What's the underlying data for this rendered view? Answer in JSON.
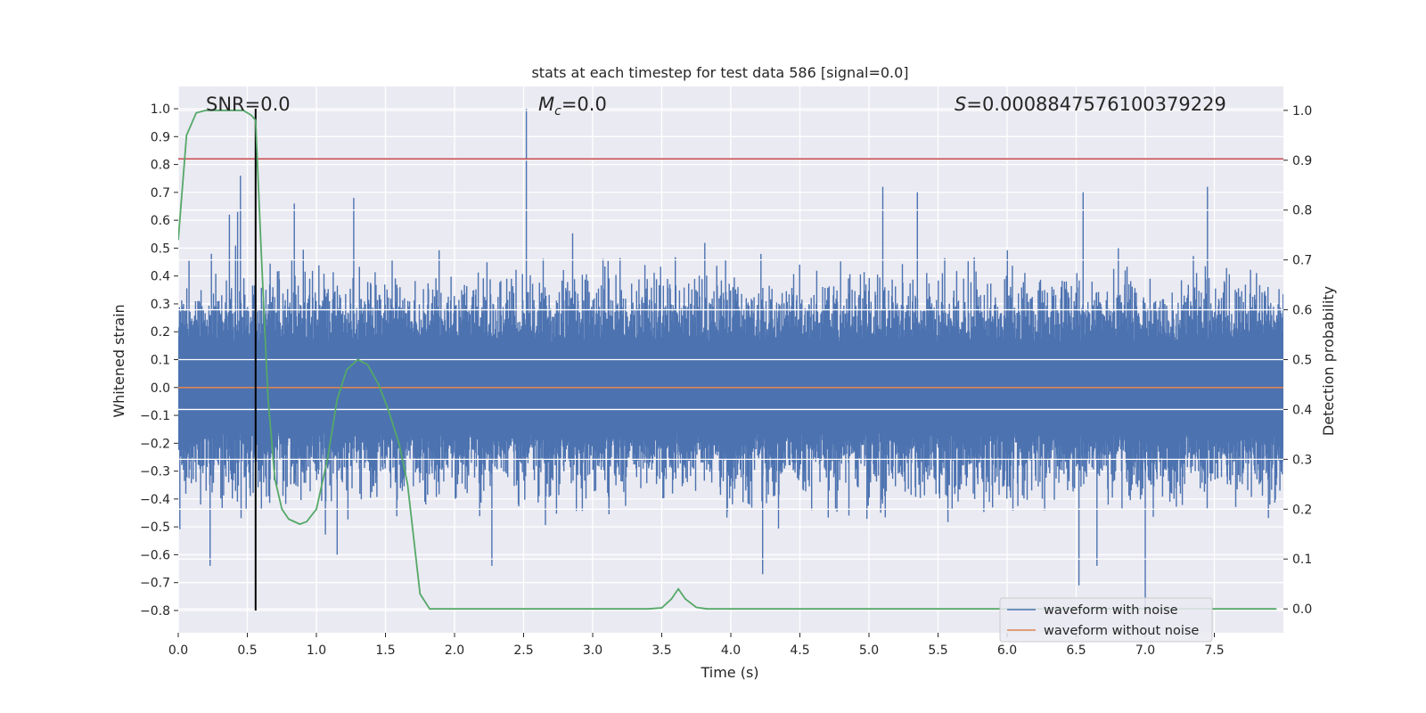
{
  "chart_data": {
    "type": "line",
    "title": "stats at each timestep for test data 586 [signal=0.0]",
    "xlabel": "Time (s)",
    "ylabel": "Whitened strain",
    "ylabel_right": "Detection probability",
    "xlim": [
      0.0,
      8.0
    ],
    "ylim": [
      -0.88,
      1.08
    ],
    "ylim_right": [
      -0.048,
      1.048
    ],
    "x_ticks": [
      "0.0",
      "0.5",
      "1.0",
      "1.5",
      "2.0",
      "2.5",
      "3.0",
      "3.5",
      "4.0",
      "4.5",
      "5.0",
      "5.5",
      "6.0",
      "6.5",
      "7.0",
      "7.5"
    ],
    "y_ticks": [
      "1.0",
      "0.9",
      "0.8",
      "0.7",
      "0.6",
      "0.5",
      "0.4",
      "0.3",
      "0.2",
      "0.1",
      "0.0",
      "−0.1",
      "−0.2",
      "−0.3",
      "−0.4",
      "−0.5",
      "−0.6",
      "−0.7",
      "−0.8"
    ],
    "y_right_ticks": [
      "1.0",
      "0.9",
      "0.8",
      "0.7",
      "0.6",
      "0.5",
      "0.4",
      "0.3",
      "0.2",
      "0.1",
      "0.0"
    ],
    "annotations": {
      "snr": "SNR=0.0",
      "mc_symbol": "M",
      "mc_sub": "c",
      "mc_value": "=0.0",
      "s_symbol": "S",
      "s_value": "=0.0008847576100379229"
    },
    "legend": {
      "placement": "lower-right",
      "entries": [
        "waveform with noise",
        "waveform without noise"
      ]
    },
    "series": [
      {
        "name": "waveform with noise",
        "color": "#4c72b0",
        "axis": "left",
        "description": "noise-dominated whitened strain, amplitude mostly within ±0.4 with spikes",
        "peaks": [
          {
            "x": 0.24,
            "y": 0.48
          },
          {
            "x": 0.37,
            "y": 0.62
          },
          {
            "x": 0.43,
            "y": 0.63
          },
          {
            "x": 0.45,
            "y": 0.76
          },
          {
            "x": 0.84,
            "y": 0.66
          },
          {
            "x": 1.27,
            "y": 0.68
          },
          {
            "x": 2.52,
            "y": 1.0
          },
          {
            "x": 5.1,
            "y": 0.72
          },
          {
            "x": 5.35,
            "y": 0.7
          },
          {
            "x": 6.55,
            "y": 0.7
          },
          {
            "x": 7.45,
            "y": 0.72
          }
        ],
        "troughs": [
          {
            "x": 0.23,
            "y": -0.64
          },
          {
            "x": 1.15,
            "y": -0.6
          },
          {
            "x": 2.27,
            "y": -0.64
          },
          {
            "x": 4.23,
            "y": -0.67
          },
          {
            "x": 6.52,
            "y": -0.71
          },
          {
            "x": 6.65,
            "y": -0.64
          },
          {
            "x": 7.0,
            "y": -0.79
          }
        ]
      },
      {
        "name": "waveform without noise",
        "color": "#dd8452",
        "axis": "left",
        "x": [
          0.0,
          8.0
        ],
        "y": [
          0.0,
          0.0
        ]
      },
      {
        "name": "detection probability",
        "color": "#55a868",
        "axis": "right",
        "x": [
          0.0,
          0.06,
          0.13,
          0.2,
          0.3,
          0.4,
          0.47,
          0.53,
          0.56,
          0.6,
          0.65,
          0.7,
          0.75,
          0.8,
          0.88,
          0.93,
          1.0,
          1.08,
          1.15,
          1.22,
          1.3,
          1.37,
          1.45,
          1.52,
          1.6,
          1.66,
          1.75,
          1.82,
          2.0,
          3.0,
          3.4,
          3.5,
          3.57,
          3.62,
          3.67,
          3.75,
          3.83,
          4.0,
          7.95
        ],
        "y": [
          0.74,
          0.95,
          0.995,
          1.0,
          1.0,
          1.0,
          1.0,
          0.99,
          0.98,
          0.72,
          0.42,
          0.26,
          0.2,
          0.18,
          0.17,
          0.175,
          0.2,
          0.3,
          0.42,
          0.48,
          0.5,
          0.49,
          0.45,
          0.4,
          0.33,
          0.25,
          0.03,
          0.0,
          0.0,
          0.0,
          0.0,
          0.002,
          0.02,
          0.04,
          0.02,
          0.003,
          0.0,
          0.0,
          0.0
        ]
      },
      {
        "name": "threshold",
        "color": "#c44e52",
        "axis": "left",
        "x": [
          0.0,
          8.0
        ],
        "y": [
          0.82,
          0.82
        ]
      },
      {
        "name": "event marker",
        "color": "#000000",
        "axis": "left",
        "x": [
          0.56,
          0.56
        ],
        "y": [
          -0.8,
          1.0
        ]
      }
    ]
  }
}
